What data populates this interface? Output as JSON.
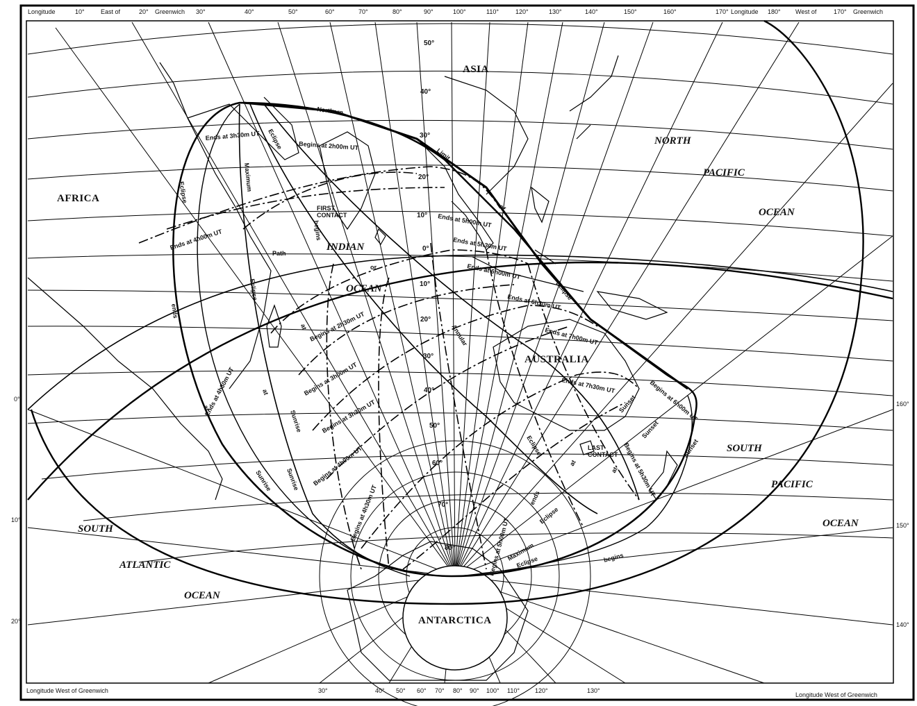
{
  "map": {
    "top_scale": {
      "left_label": "Longitude",
      "ticks_east": [
        "10°",
        "East of",
        "20°",
        "Greenwich",
        "30°",
        "40°",
        "50°",
        "60°",
        "70°",
        "80°",
        "90°",
        "100°",
        "110°",
        "120°",
        "130°",
        "140°",
        "150°",
        "160°",
        "170°"
      ],
      "right_label": "Longitude",
      "ticks_west": [
        "180°",
        "West of",
        "170°",
        "Greenwich"
      ]
    },
    "bottom_scale": {
      "left_label": "Longitude West of Greenwich",
      "ticks": [
        "30°",
        "40°",
        "50°",
        "60°",
        "70°",
        "80°",
        "90°",
        "100°",
        "110°",
        "120°",
        "130°"
      ],
      "right_label": "Longitude West of Greenwich"
    },
    "left_ticks": [
      "0°",
      "10°",
      "20°"
    ],
    "right_ticks": [
      "160°",
      "150°",
      "140°"
    ],
    "latitudes": [
      "50°",
      "40°",
      "30°",
      "20°",
      "10°",
      "0°",
      "10°",
      "20°",
      "30°",
      "40°",
      "50°",
      "60°",
      "70°",
      "80°"
    ],
    "regions": {
      "asia": "ASIA",
      "africa": "AFRICA",
      "australia": "AUSTRALIA",
      "antarctica": "ANTARCTICA"
    },
    "oceans": {
      "indian_1": "INDIAN",
      "indian_2": "OCEAN",
      "north_pacific_1": "NORTH",
      "north_pacific_2": "PACIFIC",
      "north_pacific_3": "OCEAN",
      "south_pacific_1": "SOUTH",
      "south_pacific_2": "PACIFIC",
      "south_pacific_3": "OCEAN",
      "south_atlantic_1": "SOUTH",
      "south_atlantic_2": "ATLANTIC",
      "south_atlantic_3": "OCEAN"
    },
    "annotations": {
      "first_contact_1": "FIRST",
      "first_contact_2": "CONTACT",
      "last_contact_1": "LAST",
      "last_contact_2": "CONTACT",
      "northern": "Northern",
      "limit": "Limit",
      "of": "of",
      "path": "Path",
      "or": "or",
      "annular": "Annular",
      "eclipse_a": "Eclipse",
      "eclipse_b": "Eclipse",
      "eclipse_c": "Eclipse",
      "eclipse_d": "Eclipse",
      "eclipse_e": "Eclipse",
      "eclipse_f": "Eclipse",
      "eclipse_g": "Eclipse",
      "maximum_a": "Maximum",
      "maximum_b": "Maximum",
      "begins_a": "begins",
      "begins_b": "begins",
      "ends_a": "ends",
      "ends_b": "ends",
      "at_a": "at",
      "at_b": "at",
      "at_c": "at",
      "at_d": "at",
      "at_e": "at",
      "sunrise_a": "Sunrise",
      "sunrise_b": "Sunrise",
      "sunrise_c": "Sunrise",
      "sunset_a": "Sunset",
      "sunset_b": "Sunset",
      "sunset_c": "Sunset"
    },
    "time_curves": {
      "ends_3h30": "Ends at 3h30m UT",
      "begins_2h00": "Begins at 2h00m UT",
      "ends_4h00": "Ends at 4h00m UT",
      "ends_5h00": "Ends at 5h00m UT",
      "ends_5h30": "Ends at 5h30m UT",
      "ends_6h00": "Ends at 6h00m UT",
      "ends_6h30": "Ends at 6h30m UT",
      "ends_7h00": "Ends at 7h00m UT",
      "ends_7h30": "Ends at 7h30m UT",
      "ends_4h30": "Ends at 4h30m UT",
      "begins_2h30": "Begins at 2h30m UT",
      "begins_3h00": "Begins at 3h00m UT",
      "begins_3h30": "Begins at 3h30m UT",
      "begins_4h00": "Begins at 4h00m UT",
      "begins_4h30": "Begins at 4h30m UT",
      "begins_5h00": "Begins at 5h00m UT",
      "begins_5h30": "Begins at 5h30m UT",
      "begins_6h00": "Begins at 6h00m UT"
    }
  }
}
